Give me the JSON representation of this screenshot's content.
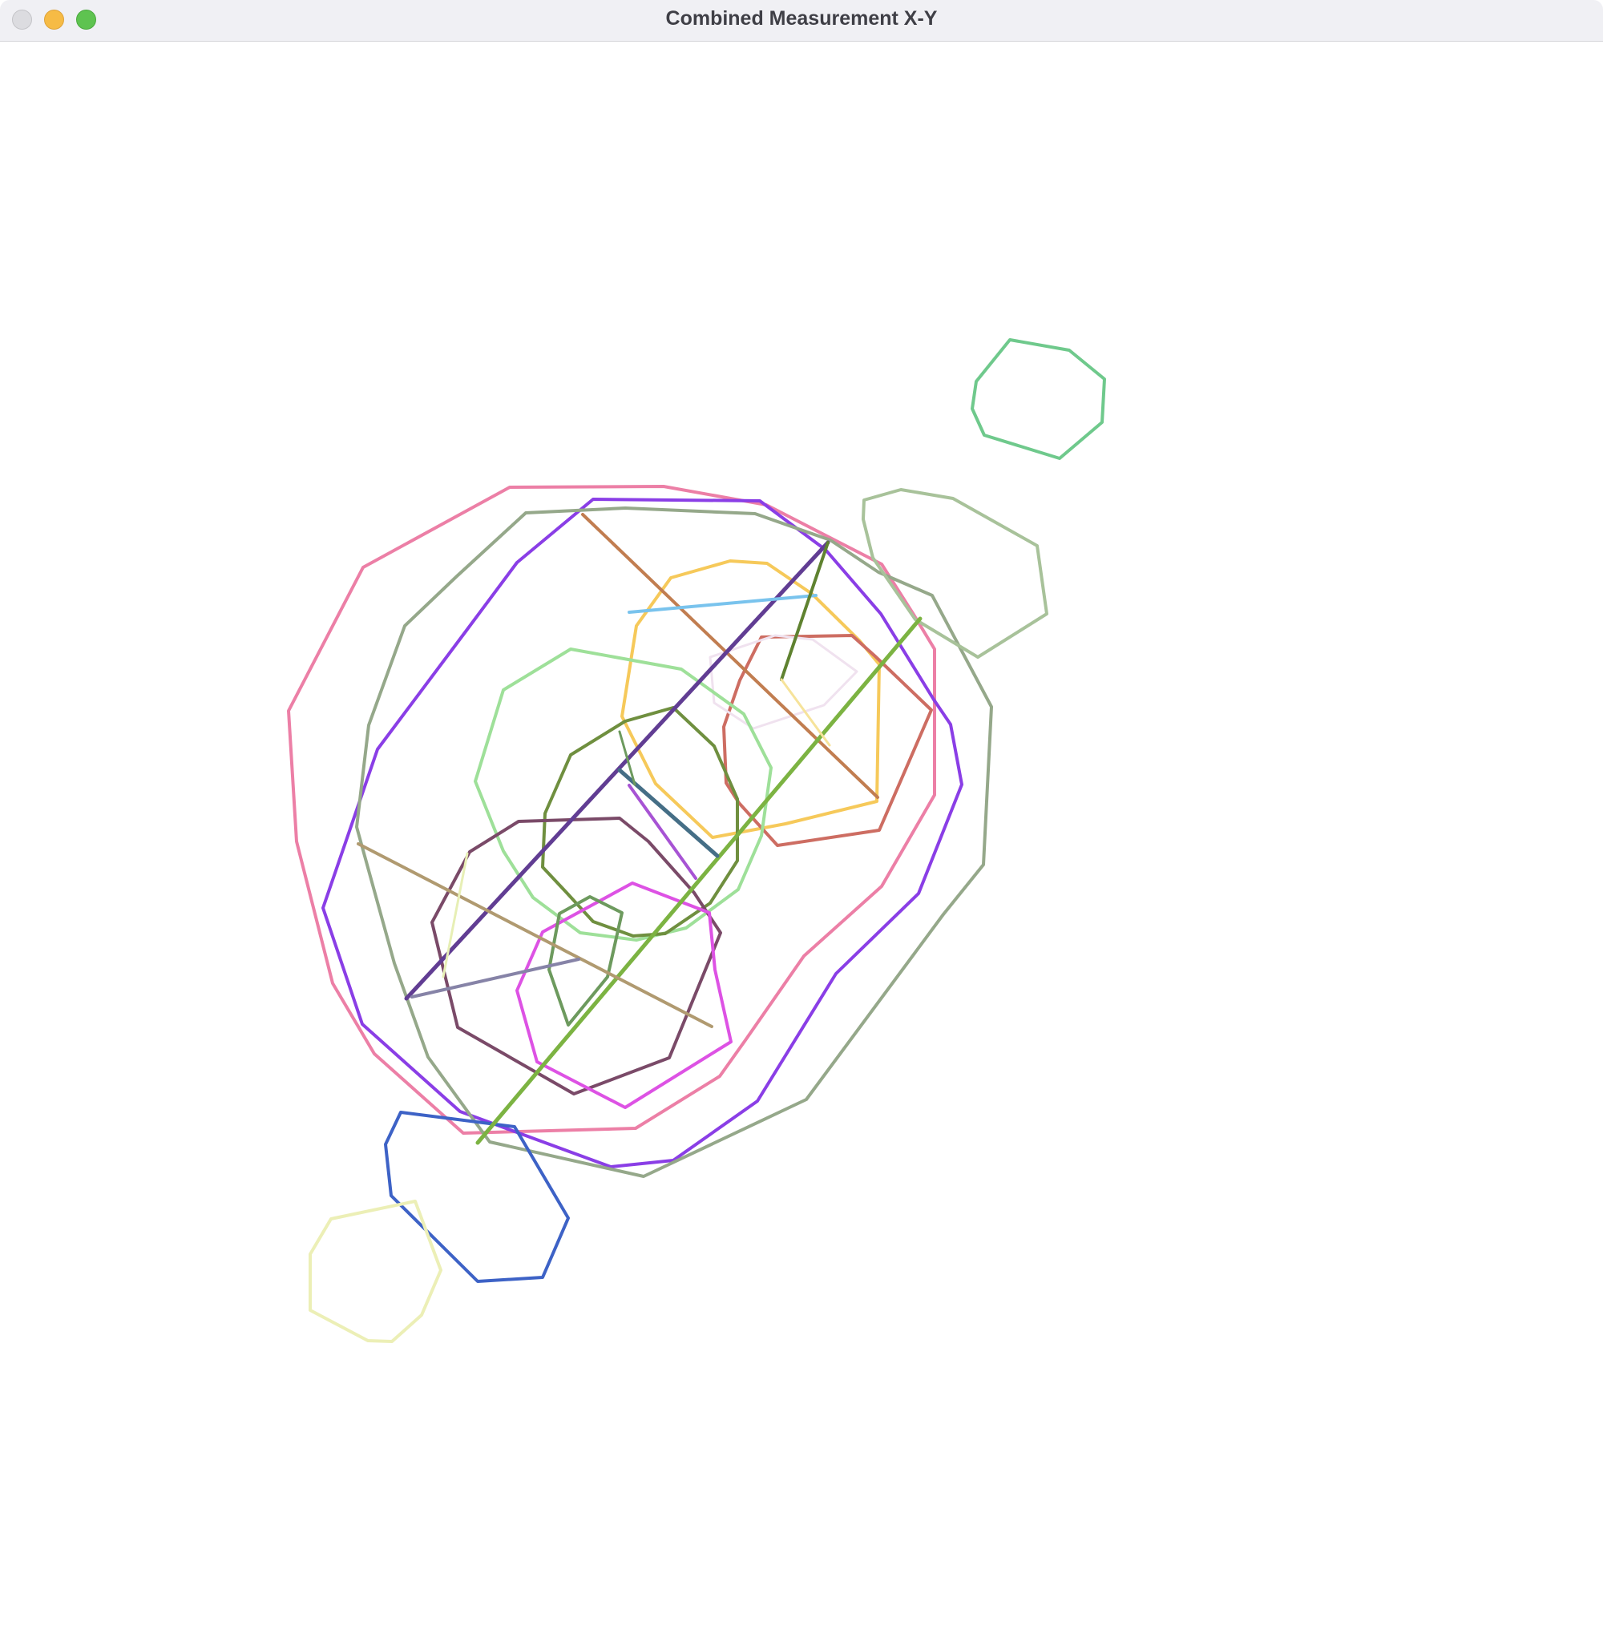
{
  "window": {
    "title": "Combined Measurement X-Y",
    "controls": {
      "close": "close-button",
      "minimize": "minimize-button",
      "zoom": "zoom-button"
    }
  },
  "colors": {
    "titlebar": "#f0f0f4",
    "canvas": "#ffffff",
    "shapes": [
      "#ec7fa6",
      "#8a3ee6",
      "#95a88a",
      "#a8c29a",
      "#6fc98c",
      "#3d62c6",
      "#ecefb6",
      "#f6c95a",
      "#cd6d62",
      "#f0e2ef",
      "#9ee099",
      "#6f8f3f",
      "#7a4a68",
      "#dd52e4",
      "#6d9a5e",
      "#c17d50",
      "#613d93",
      "#7cb342",
      "#79c3ed",
      "#456e86",
      "#b09a70",
      "#8683a7",
      "#a753d4",
      "#5f8230",
      "#e7efb5"
    ]
  }
}
